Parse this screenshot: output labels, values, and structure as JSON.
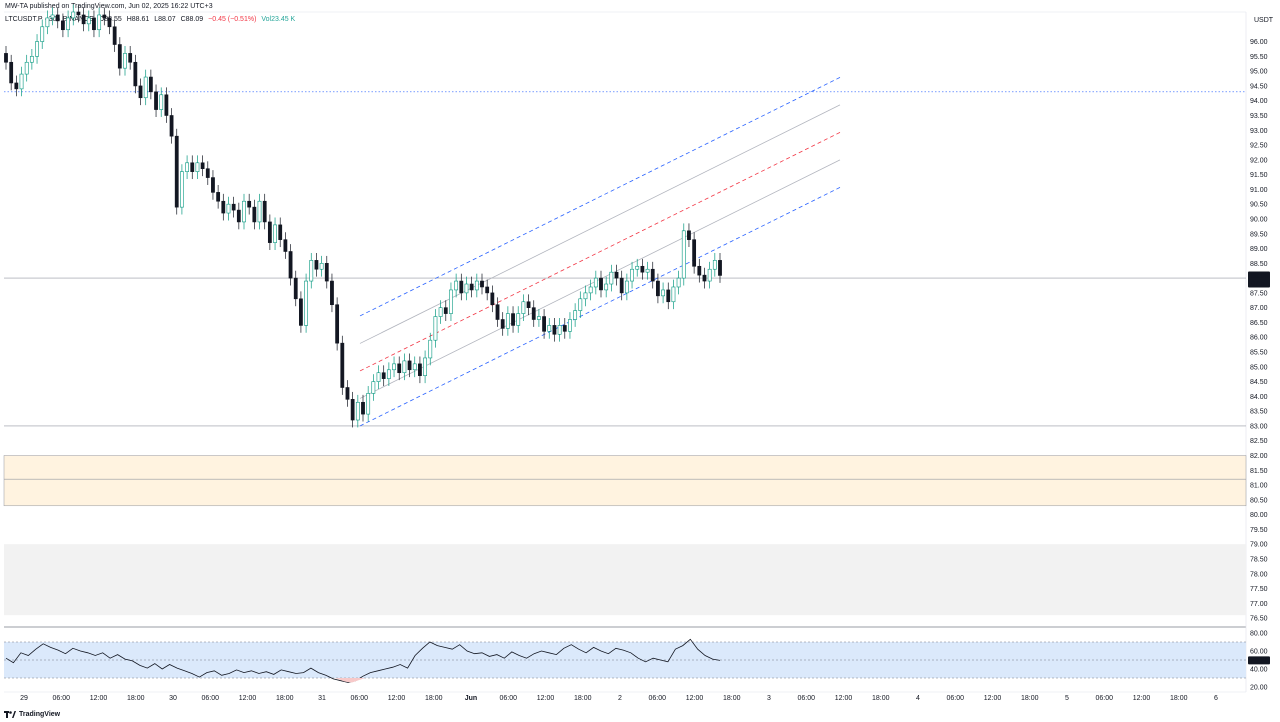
{
  "header": {
    "publisher": "MW-TA published on TradingView.com, Jun 02, 2025 16:22 UTC+3",
    "symbol": "LTCUSDT.P · 30 · BINANCE",
    "open": "O88.55",
    "high": "H88.61",
    "low": "L88.07",
    "close": "C88.09",
    "change": "−0.45 (−0.51%)",
    "volume": "Vol23.45 K"
  },
  "currency": "USDT",
  "brand": "TradingView",
  "colors": {
    "up": "#26a69a",
    "up_body": "#089981",
    "down": "#131722",
    "channel_outer": "#2962ff",
    "channel_mid": "#f23645",
    "channel_inner": "#b2b5be",
    "demand_zone": "#fff3e0",
    "grey_zone": "#f2f2f2",
    "rsi_band": "#dbe9fb",
    "rsi_oversold": "#f7c9c9"
  },
  "chart_data": [
    {
      "type": "candlestick",
      "symbol": "LTCUSDT.P",
      "interval": "30",
      "exchange": "BINANCE",
      "ylim": [
        76.2,
        97.0
      ],
      "x_ticks": [
        "29",
        "06:00",
        "12:00",
        "18:00",
        "30",
        "06:00",
        "12:00",
        "18:00",
        "31",
        "06:00",
        "12:00",
        "18:00",
        "Jun",
        "06:00",
        "12:00",
        "18:00",
        "2",
        "06:00",
        "12:00",
        "18:00",
        "3",
        "06:00",
        "12:00",
        "18:00",
        "4",
        "06:00",
        "12:00",
        "18:00",
        "5",
        "06:00",
        "12:00",
        "18:00",
        "6"
      ],
      "y_ticks": [
        "96.00",
        "95.50",
        "95.00",
        "94.50",
        "94.00",
        "93.50",
        "93.00",
        "92.50",
        "92.00",
        "91.50",
        "91.00",
        "90.50",
        "90.00",
        "89.50",
        "89.00",
        "88.50",
        "87.50",
        "87.00",
        "86.50",
        "86.00",
        "85.50",
        "85.00",
        "84.50",
        "84.00",
        "83.50",
        "83.00",
        "82.50",
        "82.00",
        "81.50",
        "81.00",
        "80.50",
        "80.00",
        "79.50",
        "79.00",
        "78.50",
        "78.00",
        "77.50",
        "77.00",
        "76.50"
      ],
      "last_price": "88.09",
      "countdown": "07:57",
      "close_series": [
        95.3,
        94.6,
        94.4,
        94.9,
        95.3,
        95.5,
        96.0,
        96.5,
        96.8,
        96.9,
        96.7,
        96.4,
        96.8,
        97.0,
        96.9,
        96.6,
        96.8,
        96.4,
        96.9,
        96.8,
        96.5,
        95.9,
        95.1,
        95.6,
        95.3,
        94.5,
        94.1,
        94.8,
        94.3,
        93.7,
        94.2,
        93.5,
        92.8,
        90.4,
        91.6,
        91.9,
        91.6,
        91.9,
        91.7,
        91.4,
        90.9,
        90.6,
        90.2,
        90.5,
        90.3,
        89.9,
        90.6,
        90.4,
        89.9,
        90.6,
        89.9,
        89.2,
        89.8,
        89.3,
        88.9,
        88.0,
        87.3,
        86.4,
        87.9,
        88.6,
        88.3,
        88.5,
        87.9,
        87.1,
        85.8,
        84.3,
        83.9,
        83.2,
        83.8,
        83.4,
        84.1,
        84.5,
        84.8,
        84.6,
        84.9,
        85.1,
        84.8,
        85.2,
        84.9,
        85.1,
        84.7,
        85.3,
        85.9,
        86.7,
        87.0,
        86.8,
        87.6,
        87.9,
        87.5,
        87.8,
        87.6,
        87.9,
        87.7,
        87.5,
        87.1,
        86.6,
        86.3,
        86.8,
        86.4,
        86.8,
        87.2,
        87.0,
        86.6,
        86.7,
        86.2,
        86.4,
        86.1,
        86.4,
        86.2,
        86.6,
        86.9,
        87.3,
        87.5,
        87.7,
        88.0,
        87.6,
        87.8,
        88.2,
        88.0,
        87.5,
        87.9,
        88.3,
        88.4,
        88.2,
        88.3,
        87.9,
        87.4,
        87.6,
        87.2,
        87.7,
        88.0,
        89.6,
        89.3,
        88.4,
        88.1,
        87.9,
        88.3,
        88.6,
        88.09
      ],
      "channel": {
        "anchor_start": {
          "x": "31 05:00",
          "price": 83.0
        },
        "anchor_end": {
          "x": "2 17:30",
          "price": 89.0
        },
        "note": "ascending regression channel: outer dashed blue, inner grey, center dashed red"
      },
      "horizontal_lines": [
        94.3,
        88.0,
        83.0
      ],
      "zones": [
        {
          "name": "demand zone",
          "from": 80.3,
          "to": 82.0,
          "mid_line": 81.2
        },
        {
          "name": "grey zone",
          "from": 76.6,
          "to": 79.0
        }
      ]
    },
    {
      "type": "line",
      "name": "RSI",
      "ylim": [
        20,
        80
      ],
      "y_ticks": [
        "80.00",
        "60.00",
        "40.00",
        "20.00"
      ],
      "band": [
        30,
        70
      ],
      "last_value": "49.58",
      "values": [
        52,
        47,
        58,
        55,
        62,
        68,
        64,
        61,
        57,
        63,
        60,
        58,
        55,
        58,
        52,
        56,
        51,
        49,
        44,
        41,
        46,
        40,
        45,
        41,
        38,
        35,
        31,
        36,
        38,
        33,
        35,
        39,
        36,
        38,
        35,
        37,
        34,
        39,
        37,
        35,
        36,
        41,
        36,
        33,
        29,
        27,
        25,
        27,
        32,
        36,
        38,
        40,
        42,
        45,
        41,
        55,
        63,
        70,
        66,
        64,
        62,
        67,
        60,
        57,
        58,
        54,
        56,
        52,
        59,
        55,
        52,
        57,
        60,
        58,
        56,
        63,
        67,
        62,
        58,
        64,
        60,
        57,
        63,
        61,
        58,
        52,
        48,
        52,
        50,
        48,
        62,
        66,
        73,
        62,
        55,
        51,
        49.58
      ]
    }
  ]
}
